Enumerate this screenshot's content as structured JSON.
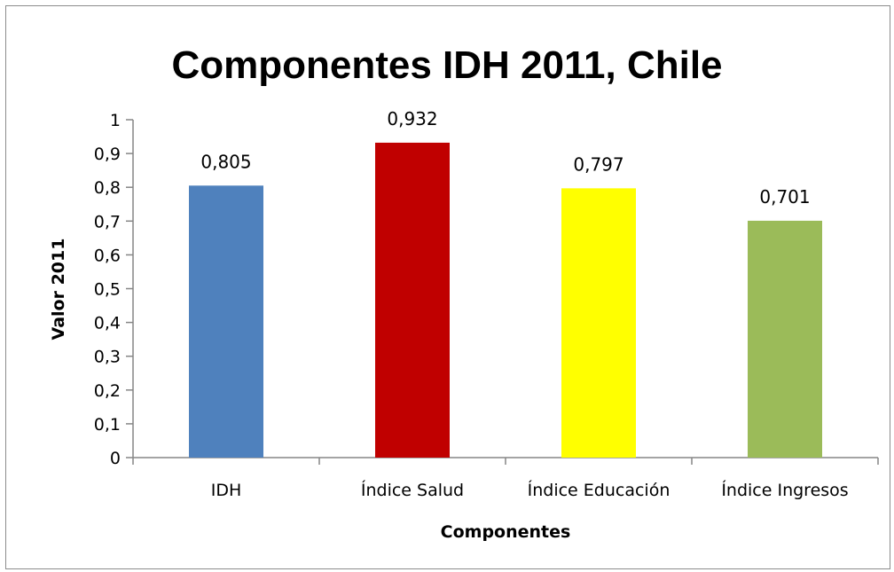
{
  "chart_data": {
    "type": "bar",
    "title": "Componentes IDH 2011, Chile",
    "xlabel": "Componentes",
    "ylabel": "Valor 2011",
    "categories": [
      "IDH",
      "Índice Salud",
      "Índice Educación",
      "Índice Ingresos"
    ],
    "values": [
      0.805,
      0.932,
      0.797,
      0.701
    ],
    "data_labels": [
      "0,805",
      "0,932",
      "0,797",
      "0,701"
    ],
    "bar_colors": [
      "#4f81bd",
      "#c00000",
      "#ffff00",
      "#9bbb59"
    ],
    "ylim": [
      0,
      1
    ],
    "yticks": [
      0,
      0.1,
      0.2,
      0.3,
      0.4,
      0.5,
      0.6,
      0.7,
      0.8,
      0.9,
      1
    ],
    "ytick_labels": [
      "0",
      "0,1",
      "0,2",
      "0,3",
      "0,4",
      "0,5",
      "0,6",
      "0,7",
      "0,8",
      "0,9",
      "1"
    ],
    "grid": false,
    "legend": "none"
  }
}
